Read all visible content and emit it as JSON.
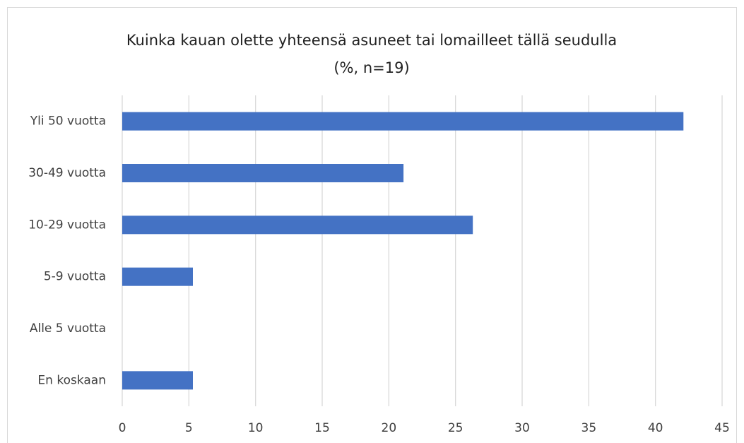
{
  "chart_data": {
    "type": "bar",
    "orientation": "horizontal",
    "title": "Kuinka kauan olette yhteensä asuneet tai lomailleet tällä seudulla",
    "subtitle": "(%, n=19)",
    "categories": [
      "Yli 50 vuotta",
      "30-49 vuotta",
      "10-29 vuotta",
      "5-9 vuotta",
      "Alle 5 vuotta",
      "En koskaan"
    ],
    "values": [
      42.1,
      21.1,
      26.3,
      5.3,
      0,
      5.3
    ],
    "color": "#4472c4",
    "xlim": [
      0,
      45
    ],
    "xticks": [
      0,
      5,
      10,
      15,
      20,
      25,
      30,
      35,
      40,
      45
    ],
    "grid": true
  }
}
